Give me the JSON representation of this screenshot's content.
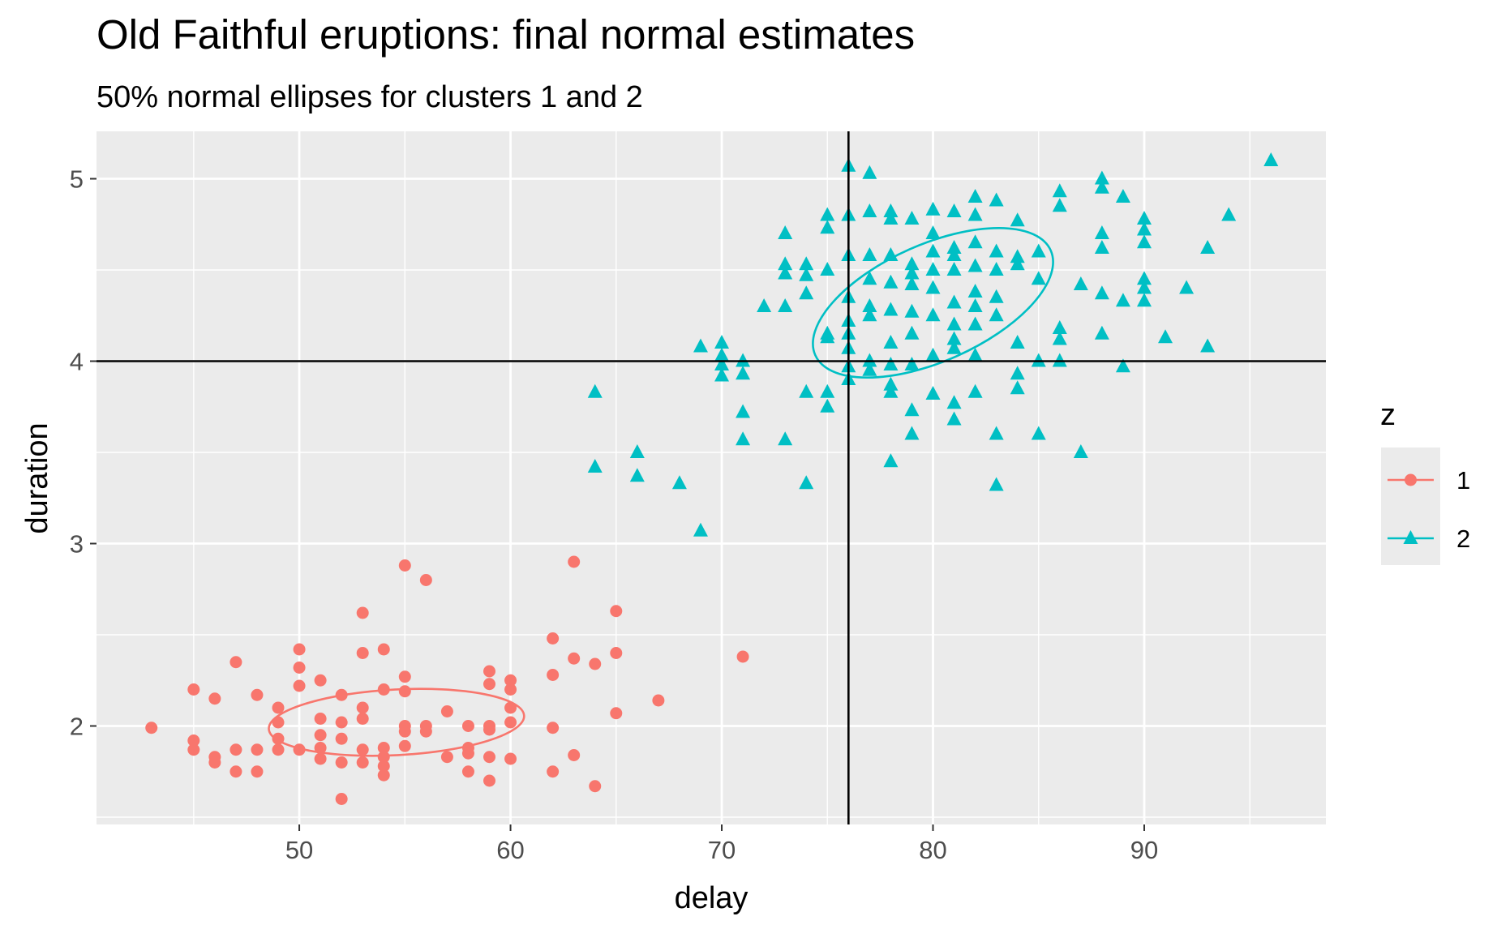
{
  "chart_data": {
    "type": "scatter",
    "title": "Old Faithful eruptions: final normal estimates",
    "subtitle": "50% normal ellipses for clusters 1 and 2",
    "xlabel": "delay",
    "ylabel": "duration",
    "xlim": [
      40.4,
      98.6
    ],
    "ylim": [
      1.46,
      5.26
    ],
    "x_ticks": [
      50,
      60,
      70,
      80,
      90
    ],
    "y_ticks": [
      2,
      3,
      4,
      5
    ],
    "grid": true,
    "legend": {
      "title": "z",
      "position": "right",
      "entries": [
        {
          "label": "1",
          "color": "#F8766D",
          "shape": "circle"
        },
        {
          "label": "2",
          "color": "#00BFC4",
          "shape": "triangle"
        }
      ]
    },
    "reference_lines": {
      "vertical_x": 76,
      "horizontal_y": 4
    },
    "ellipses": [
      {
        "cluster": "1",
        "color": "#F8766D",
        "center": [
          54.6,
          2.02
        ],
        "x_range": [
          48.4,
          60.5
        ],
        "y_range": [
          1.81,
          2.26
        ],
        "tilt_deg": -3
      },
      {
        "cluster": "2",
        "color": "#00BFC4",
        "center": [
          80.0,
          4.32
        ],
        "x_range": [
          73.9,
          86.1
        ],
        "y_range": [
          3.93,
          4.73
        ],
        "tilt_deg": -24
      }
    ],
    "series": [
      {
        "name": "1",
        "color": "#F8766D",
        "shape": "circle",
        "points": [
          [
            43,
            1.99
          ],
          [
            45,
            2.2
          ],
          [
            45,
            1.92
          ],
          [
            45,
            1.87
          ],
          [
            46,
            2.15
          ],
          [
            46,
            1.83
          ],
          [
            46,
            1.8
          ],
          [
            47,
            2.35
          ],
          [
            47,
            1.87
          ],
          [
            47,
            1.75
          ],
          [
            48,
            2.17
          ],
          [
            48,
            1.87
          ],
          [
            48,
            1.75
          ],
          [
            49,
            2.1
          ],
          [
            49,
            2.02
          ],
          [
            49,
            1.93
          ],
          [
            49,
            1.87
          ],
          [
            50,
            2.42
          ],
          [
            50,
            2.32
          ],
          [
            50,
            2.22
          ],
          [
            50,
            1.87
          ],
          [
            51,
            2.25
          ],
          [
            51,
            2.04
          ],
          [
            51,
            1.95
          ],
          [
            51,
            1.88
          ],
          [
            51,
            1.82
          ],
          [
            52,
            2.17
          ],
          [
            52,
            2.02
          ],
          [
            52,
            1.93
          ],
          [
            52,
            1.8
          ],
          [
            52,
            1.6
          ],
          [
            53,
            2.62
          ],
          [
            53,
            2.4
          ],
          [
            53,
            2.1
          ],
          [
            53,
            2.04
          ],
          [
            53,
            1.87
          ],
          [
            53,
            1.8
          ],
          [
            54,
            2.42
          ],
          [
            54,
            2.2
          ],
          [
            54,
            1.88
          ],
          [
            54,
            1.83
          ],
          [
            54,
            1.78
          ],
          [
            54,
            1.73
          ],
          [
            55,
            2.88
          ],
          [
            55,
            2.27
          ],
          [
            55,
            2.19
          ],
          [
            55,
            2.0
          ],
          [
            55,
            1.97
          ],
          [
            55,
            1.89
          ],
          [
            56,
            2.8
          ],
          [
            56,
            2.0
          ],
          [
            56,
            1.97
          ],
          [
            57,
            2.08
          ],
          [
            57,
            1.83
          ],
          [
            58,
            2.0
          ],
          [
            58,
            1.88
          ],
          [
            58,
            1.85
          ],
          [
            58,
            1.75
          ],
          [
            59,
            2.3
          ],
          [
            59,
            2.23
          ],
          [
            59,
            2.0
          ],
          [
            59,
            1.98
          ],
          [
            59,
            1.83
          ],
          [
            59,
            1.7
          ],
          [
            60,
            2.25
          ],
          [
            60,
            2.2
          ],
          [
            60,
            2.1
          ],
          [
            60,
            2.02
          ],
          [
            60,
            1.82
          ],
          [
            62,
            2.48
          ],
          [
            62,
            2.28
          ],
          [
            62,
            1.99
          ],
          [
            62,
            1.75
          ],
          [
            63,
            2.9
          ],
          [
            63,
            2.37
          ],
          [
            63,
            1.84
          ],
          [
            64,
            2.34
          ],
          [
            64,
            1.67
          ],
          [
            65,
            2.63
          ],
          [
            65,
            2.4
          ],
          [
            65,
            2.07
          ],
          [
            67,
            2.14
          ],
          [
            71,
            2.38
          ]
        ]
      },
      {
        "name": "2",
        "color": "#00BFC4",
        "shape": "triangle",
        "points": [
          [
            64,
            3.83
          ],
          [
            64,
            3.42
          ],
          [
            66,
            3.5
          ],
          [
            66,
            3.37
          ],
          [
            68,
            3.33
          ],
          [
            69,
            4.08
          ],
          [
            69,
            3.07
          ],
          [
            70,
            4.1
          ],
          [
            70,
            4.03
          ],
          [
            70,
            3.98
          ],
          [
            70,
            3.92
          ],
          [
            71,
            4.0
          ],
          [
            71,
            3.93
          ],
          [
            71,
            3.72
          ],
          [
            71,
            3.57
          ],
          [
            72,
            4.3
          ],
          [
            73,
            4.7
          ],
          [
            73,
            4.53
          ],
          [
            73,
            4.48
          ],
          [
            73,
            4.3
          ],
          [
            73,
            3.57
          ],
          [
            74,
            4.53
          ],
          [
            74,
            4.47
          ],
          [
            74,
            4.37
          ],
          [
            74,
            3.83
          ],
          [
            74,
            3.33
          ],
          [
            75,
            4.8
          ],
          [
            75,
            4.73
          ],
          [
            75,
            4.5
          ],
          [
            75,
            4.15
          ],
          [
            75,
            4.13
          ],
          [
            75,
            3.83
          ],
          [
            75,
            3.75
          ],
          [
            76,
            4.8
          ],
          [
            76,
            4.58
          ],
          [
            76,
            4.35
          ],
          [
            76,
            4.22
          ],
          [
            76,
            4.15
          ],
          [
            76,
            4.07
          ],
          [
            76,
            3.97
          ],
          [
            76,
            3.9
          ],
          [
            76,
            5.07
          ],
          [
            77,
            5.03
          ],
          [
            77,
            4.82
          ],
          [
            77,
            4.58
          ],
          [
            77,
            4.45
          ],
          [
            77,
            4.3
          ],
          [
            77,
            4.25
          ],
          [
            77,
            4.0
          ],
          [
            77,
            3.95
          ],
          [
            78,
            4.82
          ],
          [
            78,
            4.78
          ],
          [
            78,
            4.58
          ],
          [
            78,
            4.43
          ],
          [
            78,
            4.28
          ],
          [
            78,
            4.1
          ],
          [
            78,
            3.98
          ],
          [
            78,
            3.87
          ],
          [
            78,
            3.83
          ],
          [
            78,
            3.45
          ],
          [
            79,
            4.78
          ],
          [
            79,
            4.53
          ],
          [
            79,
            4.48
          ],
          [
            79,
            4.42
          ],
          [
            79,
            4.27
          ],
          [
            79,
            4.15
          ],
          [
            79,
            3.98
          ],
          [
            79,
            3.73
          ],
          [
            79,
            3.6
          ],
          [
            80,
            4.83
          ],
          [
            80,
            4.7
          ],
          [
            80,
            4.6
          ],
          [
            80,
            4.5
          ],
          [
            80,
            4.4
          ],
          [
            80,
            4.25
          ],
          [
            80,
            4.03
          ],
          [
            80,
            3.82
          ],
          [
            81,
            4.82
          ],
          [
            81,
            4.62
          ],
          [
            81,
            4.58
          ],
          [
            81,
            4.5
          ],
          [
            81,
            4.32
          ],
          [
            81,
            4.2
          ],
          [
            81,
            4.12
          ],
          [
            81,
            4.07
          ],
          [
            81,
            3.77
          ],
          [
            81,
            3.68
          ],
          [
            82,
            4.9
          ],
          [
            82,
            4.8
          ],
          [
            82,
            4.65
          ],
          [
            82,
            4.52
          ],
          [
            82,
            4.38
          ],
          [
            82,
            4.3
          ],
          [
            82,
            4.2
          ],
          [
            82,
            4.03
          ],
          [
            82,
            3.83
          ],
          [
            83,
            4.88
          ],
          [
            83,
            4.6
          ],
          [
            83,
            4.5
          ],
          [
            83,
            4.35
          ],
          [
            83,
            4.25
          ],
          [
            83,
            3.6
          ],
          [
            83,
            3.32
          ],
          [
            84,
            4.77
          ],
          [
            84,
            4.57
          ],
          [
            84,
            4.53
          ],
          [
            84,
            4.1
          ],
          [
            84,
            3.93
          ],
          [
            84,
            3.85
          ],
          [
            85,
            4.6
          ],
          [
            85,
            4.45
          ],
          [
            85,
            4.0
          ],
          [
            85,
            3.6
          ],
          [
            86,
            4.93
          ],
          [
            86,
            4.85
          ],
          [
            86,
            4.18
          ],
          [
            86,
            4.12
          ],
          [
            86,
            4.0
          ],
          [
            87,
            4.42
          ],
          [
            87,
            3.5
          ],
          [
            88,
            5.0
          ],
          [
            88,
            4.95
          ],
          [
            88,
            4.7
          ],
          [
            88,
            4.62
          ],
          [
            88,
            4.37
          ],
          [
            88,
            4.15
          ],
          [
            89,
            4.9
          ],
          [
            89,
            4.33
          ],
          [
            89,
            3.97
          ],
          [
            90,
            4.78
          ],
          [
            90,
            4.72
          ],
          [
            90,
            4.65
          ],
          [
            90,
            4.45
          ],
          [
            90,
            4.4
          ],
          [
            90,
            4.33
          ],
          [
            91,
            4.13
          ],
          [
            92,
            4.4
          ],
          [
            93,
            4.62
          ],
          [
            93,
            4.08
          ],
          [
            94,
            4.8
          ],
          [
            96,
            5.1
          ]
        ]
      }
    ]
  }
}
